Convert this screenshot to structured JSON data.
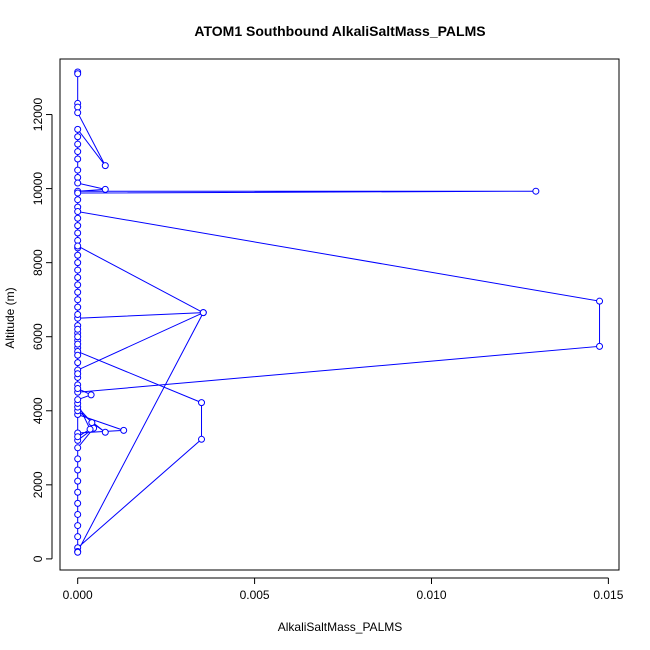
{
  "chart_data": {
    "type": "line",
    "title": "ATOM1 Southbound AlkaliSaltMass_PALMS",
    "xlabel": "AlkaliSaltMass_PALMS",
    "ylabel": "Altitude (m)",
    "xlim": [
      -0.0005,
      0.0153
    ],
    "ylim": [
      -300,
      13500
    ],
    "xticks": [
      0.0,
      0.005,
      0.01,
      0.015
    ],
    "xtick_labels": [
      "0.000",
      "0.005",
      "0.010",
      "0.015"
    ],
    "yticks": [
      0,
      2000,
      4000,
      6000,
      8000,
      10000,
      12000
    ],
    "ytick_labels": [
      "0",
      "2000",
      "4000",
      "6000",
      "8000",
      "10000",
      "12000"
    ],
    "grid": false,
    "series": [
      {
        "color": "#0000ff",
        "marker": "open-circle",
        "points": [
          [
            0.0,
            13150
          ],
          [
            0.0,
            13100
          ],
          [
            0.0,
            12300
          ],
          [
            0.0,
            12200
          ],
          [
            0.0,
            12050
          ],
          [
            0.00078,
            10620
          ],
          [
            0.0,
            11600
          ],
          [
            0.0,
            11400
          ],
          [
            0.0,
            11200
          ],
          [
            0.0,
            11000
          ],
          [
            0.0,
            10800
          ],
          [
            0.0,
            10500
          ],
          [
            0.0,
            10300
          ],
          [
            0.0,
            10150
          ],
          [
            0.00078,
            9980
          ],
          [
            0.0,
            9930
          ],
          [
            0.01295,
            9930
          ],
          [
            0.0,
            9880
          ],
          [
            0.0,
            9700
          ],
          [
            0.0,
            9500
          ],
          [
            0.0,
            9380
          ],
          [
            0.01475,
            6960
          ],
          [
            0.01475,
            5740
          ],
          [
            0.0,
            4500
          ],
          [
            0.0,
            4700
          ],
          [
            0.0,
            4900
          ],
          [
            0.0,
            5100
          ],
          [
            0.00355,
            6650
          ],
          [
            0.0,
            6500
          ],
          [
            0.0,
            6300
          ],
          [
            0.0,
            6100
          ],
          [
            0.0,
            5900
          ],
          [
            0.0,
            5700
          ],
          [
            0.0,
            5600
          ],
          [
            0.0035,
            4220
          ],
          [
            0.0035,
            3230
          ],
          [
            0.0,
            300
          ],
          [
            0.0,
            600
          ],
          [
            0.0,
            900
          ],
          [
            0.0,
            1200
          ],
          [
            0.0,
            1500
          ],
          [
            0.0,
            1800
          ],
          [
            0.0,
            2100
          ],
          [
            0.0,
            2400
          ],
          [
            0.0,
            2700
          ],
          [
            0.0,
            3000
          ],
          [
            0.00045,
            3530
          ],
          [
            0.0,
            3200
          ],
          [
            0.0,
            3400
          ],
          [
            0.0013,
            3470
          ],
          [
            0.0,
            3900
          ],
          [
            0.0,
            4000
          ],
          [
            0.00078,
            3420
          ],
          [
            0.0004,
            3680
          ],
          [
            0.0,
            4100
          ],
          [
            0.0,
            4200
          ],
          [
            0.00035,
            3500
          ],
          [
            0.0,
            3300
          ],
          [
            0.0,
            4300
          ],
          [
            0.00038,
            4430
          ],
          [
            0.0,
            4600
          ],
          [
            0.0,
            5000
          ],
          [
            0.0,
            5300
          ],
          [
            0.0,
            5500
          ],
          [
            0.0,
            5800
          ],
          [
            0.0,
            6000
          ],
          [
            0.0,
            6200
          ],
          [
            0.0,
            6600
          ],
          [
            0.0,
            6800
          ],
          [
            0.0,
            7000
          ],
          [
            0.0,
            7200
          ],
          [
            0.0,
            7400
          ],
          [
            0.0,
            7600
          ],
          [
            0.0,
            7800
          ],
          [
            0.0,
            8000
          ],
          [
            0.0,
            8200
          ],
          [
            0.0,
            8400
          ],
          [
            0.0,
            8600
          ],
          [
            0.0,
            8800
          ],
          [
            0.0,
            9000
          ],
          [
            0.0,
            9200
          ],
          [
            0.0,
            8450
          ],
          [
            0.00355,
            6650
          ],
          [
            0.0,
            200
          ],
          [
            0.0,
            180
          ]
        ]
      }
    ]
  }
}
